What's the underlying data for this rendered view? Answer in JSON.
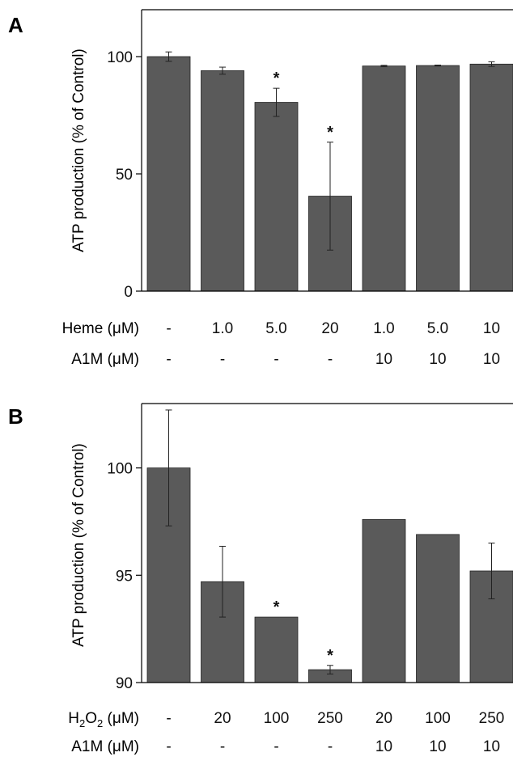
{
  "colors": {
    "bar": "#5a5a5a",
    "axis": "#000000",
    "text": "#111111"
  },
  "chart_data": [
    {
      "panel": "A",
      "type": "bar",
      "ylabel": "ATP production (% of Control)",
      "ylim": [
        0,
        120
      ],
      "yticks": [
        0,
        50,
        100
      ],
      "grid": false,
      "series": [
        {
          "values": [
            100,
            94,
            80.5,
            40.5,
            96,
            96.2,
            96.8
          ],
          "errors": [
            2,
            1.5,
            6,
            23,
            0.3,
            0.2,
            1
          ]
        }
      ],
      "significant": [
        false,
        false,
        true,
        true,
        false,
        false,
        false
      ],
      "significance_marker": "*",
      "conditions": [
        {
          "label": "Heme (μM)",
          "values": [
            "-",
            "1.0",
            "5.0",
            "20",
            "1.0",
            "5.0",
            "10"
          ]
        },
        {
          "label": "A1M (μM)",
          "values": [
            "-",
            "-",
            "-",
            "-",
            "10",
            "10",
            "10"
          ]
        }
      ]
    },
    {
      "panel": "B",
      "type": "bar",
      "ylabel": "ATP production (% of Control)",
      "ylim": [
        90,
        103
      ],
      "yticks": [
        90,
        95,
        100
      ],
      "grid": false,
      "series": [
        {
          "values": [
            100,
            94.7,
            93.05,
            90.6,
            97.6,
            96.9,
            95.2
          ],
          "errors": [
            2.7,
            1.65,
            0,
            0.2,
            0,
            0,
            1.3
          ]
        }
      ],
      "significant": [
        false,
        false,
        true,
        true,
        false,
        false,
        false
      ],
      "significance_marker": "*",
      "conditions": [
        {
          "label_main": "H",
          "label_sub1": "2",
          "label_mid": "O",
          "label_sub2": "2",
          "label_tail": " (μM)",
          "values": [
            "-",
            "20",
            "100",
            "250",
            "20",
            "100",
            "250"
          ]
        },
        {
          "label": "A1M (μM)",
          "values": [
            "-",
            "-",
            "-",
            "-",
            "10",
            "10",
            "10"
          ]
        }
      ]
    }
  ]
}
